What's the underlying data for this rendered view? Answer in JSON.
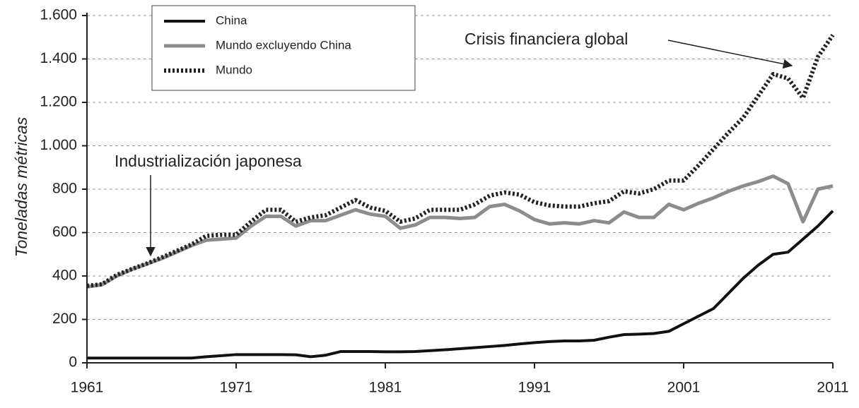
{
  "chart_data": {
    "type": "line",
    "y_label": "Toneladas métricas",
    "annotations": [
      "Industrialización japonesa",
      "Crisis financiera global"
    ],
    "x": [
      1961,
      1962,
      1963,
      1964,
      1965,
      1966,
      1967,
      1968,
      1969,
      1970,
      1971,
      1972,
      1973,
      1974,
      1975,
      1976,
      1977,
      1978,
      1979,
      1980,
      1981,
      1982,
      1983,
      1984,
      1985,
      1986,
      1987,
      1988,
      1989,
      1990,
      1991,
      1992,
      1993,
      1994,
      1995,
      1996,
      1997,
      1998,
      1999,
      2000,
      2001,
      2002,
      2003,
      2004,
      2005,
      2006,
      2007,
      2008,
      2009,
      2010,
      2011
    ],
    "series": [
      {
        "name": "China",
        "color": "#111111",
        "style": "solid",
        "values": [
          22,
          22,
          22,
          22,
          22,
          22,
          22,
          22,
          28,
          33,
          38,
          38,
          38,
          38,
          37,
          28,
          35,
          52,
          52,
          52,
          51,
          51,
          52,
          56,
          60,
          65,
          70,
          75,
          80,
          87,
          93,
          98,
          101,
          101,
          104,
          118,
          130,
          132,
          135,
          145,
          180,
          215,
          250,
          320,
          390,
          450,
          500,
          510,
          570,
          630,
          700
        ]
      },
      {
        "name": "Mundo excluyendo China",
        "color": "#8c8c8c",
        "style": "solid",
        "values": [
          350,
          360,
          400,
          430,
          455,
          480,
          510,
          540,
          565,
          570,
          575,
          630,
          675,
          675,
          630,
          655,
          655,
          680,
          705,
          685,
          675,
          620,
          635,
          670,
          670,
          665,
          670,
          720,
          730,
          700,
          660,
          640,
          645,
          640,
          655,
          645,
          695,
          670,
          670,
          730,
          705,
          735,
          760,
          790,
          815,
          835,
          860,
          825,
          650,
          800,
          815
        ]
      },
      {
        "name": "Mundo",
        "color": "#222222",
        "style": "dotted",
        "values": [
          355,
          362,
          405,
          432,
          457,
          485,
          515,
          545,
          585,
          590,
          590,
          650,
          705,
          705,
          650,
          670,
          680,
          715,
          750,
          715,
          700,
          650,
          665,
          705,
          705,
          705,
          730,
          770,
          785,
          775,
          740,
          725,
          720,
          720,
          735,
          745,
          790,
          780,
          800,
          840,
          840,
          910,
          985,
          1060,
          1130,
          1230,
          1330,
          1310,
          1220,
          1410,
          1510
        ]
      }
    ],
    "xlim": [
      1961,
      2011
    ],
    "xticks": [
      1961,
      1971,
      1981,
      1991,
      2001,
      2011
    ],
    "ylim": [
      0,
      1600
    ],
    "yticks": [
      0,
      200,
      400,
      600,
      800,
      {
        "value": 1000,
        "label": "1.000"
      },
      {
        "value": 1200,
        "label": "1.200"
      },
      {
        "value": 1400,
        "label": "1.400"
      },
      {
        "value": 1600,
        "label": "1.600"
      }
    ],
    "grid": true
  }
}
